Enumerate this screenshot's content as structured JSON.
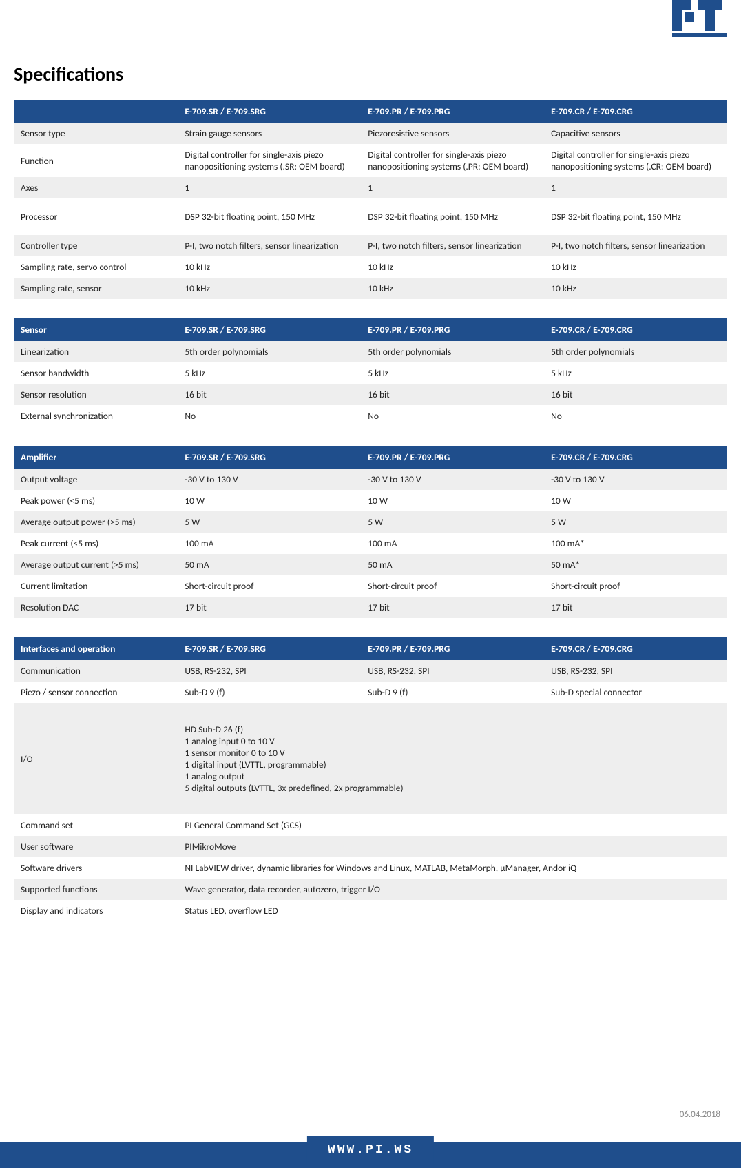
{
  "logo_text": "PI",
  "title": "Specifications",
  "date": "06.04.2018",
  "footer_url": "WWW.PI.WS",
  "header_colors": {
    "bg": "#1f4e8c",
    "text": "#ffffff",
    "row_even": "#eeeeee",
    "row_odd": "#ffffff"
  },
  "tables": [
    {
      "header": {
        "label": "",
        "c1": "E-709.SR / E-709.SRG",
        "c2": "E-709.PR / E-709.PRG",
        "c3": "E-709.CR / E-709.CRG"
      },
      "rows": [
        {
          "label": "Sensor type",
          "c1": "Strain gauge sensors",
          "c2": "Piezoresistive sensors",
          "c3": "Capacitive sensors"
        },
        {
          "label": "Function",
          "c1": "Digital controller for single-axis piezo nanopositioning systems (.SR: OEM board)",
          "c2": "Digital controller for single-axis piezo nanopositioning systems (.PR: OEM board)",
          "c3": "Digital controller for single-axis piezo nanopositioning systems (.CR: OEM board)"
        },
        {
          "label": "Axes",
          "c1": "1",
          "c2": "1",
          "c3": "1"
        },
        {
          "label": "Processor",
          "c1": "DSP 32-bit floating point, 150 MHz",
          "c2": "DSP 32-bit floating point, 150 MHz",
          "c3": "DSP 32-bit floating point, 150 MHz",
          "tall": true
        },
        {
          "label": "Controller type",
          "c1": "P-I, two notch filters, sensor linearization",
          "c2": "P-I, two notch filters, sensor linearization",
          "c3": "P-I, two notch filters, sensor linearization"
        },
        {
          "label": "Sampling rate, servo control",
          "c1": "10 kHz",
          "c2": "10 kHz",
          "c3": "10 kHz"
        },
        {
          "label": "Sampling rate, sensor",
          "c1": "10 kHz",
          "c2": "10 kHz",
          "c3": "10 kHz"
        }
      ]
    },
    {
      "header": {
        "label": "Sensor",
        "c1": "E-709.SR / E-709.SRG",
        "c2": "E-709.PR / E-709.PRG",
        "c3": "E-709.CR / E-709.CRG"
      },
      "rows": [
        {
          "label": "Linearization",
          "c1": "5th order polynomials",
          "c2": "5th order polynomials",
          "c3": "5th order polynomials"
        },
        {
          "label": "Sensor bandwidth",
          "c1": "5 kHz",
          "c2": "5 kHz",
          "c3": "5 kHz"
        },
        {
          "label": "Sensor resolution",
          "c1": "16 bit",
          "c2": "16 bit",
          "c3": "16 bit"
        },
        {
          "label": "External synchronization",
          "c1": "No",
          "c2": "No",
          "c3": "No"
        }
      ]
    },
    {
      "header": {
        "label": "Amplifier",
        "c1": "E-709.SR / E-709.SRG",
        "c2": "E-709.PR / E-709.PRG",
        "c3": "E-709.CR / E-709.CRG"
      },
      "rows": [
        {
          "label": "Output voltage",
          "c1": "-30 V to 130 V",
          "c2": "-30 V to 130 V",
          "c3": "-30 V to 130 V"
        },
        {
          "label": "Peak power (<5 ms)",
          "c1": "10 W",
          "c2": "10 W",
          "c3": "10 W"
        },
        {
          "label": "Average output power (>5 ms)",
          "c1": "5 W",
          "c2": "5 W",
          "c3": "5 W"
        },
        {
          "label": "Peak current (<5 ms)",
          "c1": "100 mA",
          "c2": "100 mA",
          "c3": "100 mA*"
        },
        {
          "label": "Average output current (>5 ms)",
          "c1": "50 mA",
          "c2": "50 mA",
          "c3": "50 mA*"
        },
        {
          "label": "Current limitation",
          "c1": "Short-circuit proof",
          "c2": "Short-circuit proof",
          "c3": "Short-circuit proof"
        },
        {
          "label": "Resolution DAC",
          "c1": "17 bit",
          "c2": "17 bit",
          "c3": "17 bit"
        }
      ]
    },
    {
      "header": {
        "label": "Interfaces and operation",
        "c1": "E-709.SR / E-709.SRG",
        "c2": "E-709.PR / E-709.PRG",
        "c3": "E-709.CR / E-709.CRG"
      },
      "rows": [
        {
          "label": "Communication",
          "c1": "USB, RS-232, SPI",
          "c2": "USB, RS-232, SPI",
          "c3": "USB, RS-232, SPI"
        },
        {
          "label": "Piezo / sensor connection",
          "c1": "Sub-D 9 (f)",
          "c2": "Sub-D 9 (f)",
          "c3": "Sub-D special connector"
        },
        {
          "label": "I/O",
          "span": true,
          "value": "HD Sub-D 26 (f)\n1 analog input 0 to 10 V\n1 sensor monitor 0 to 10 V\n1 digital input (LVTTL, programmable)\n1 analog output\n5 digital outputs (LVTTL, 3x predefined, 2x programmable)"
        },
        {
          "label": "Command set",
          "span": true,
          "value": "PI General Command Set (GCS)"
        },
        {
          "label": "User software",
          "span": true,
          "value": "PIMikroMove"
        },
        {
          "label": "Software drivers",
          "span": true,
          "value": "NI LabVIEW driver, dynamic libraries for Windows and Linux, MATLAB, MetaMorph, μManager, Andor iQ"
        },
        {
          "label": "Supported functions",
          "span": true,
          "value": "Wave generator, data recorder, autozero, trigger I/O"
        },
        {
          "label": "Display and indicators",
          "span": true,
          "value": "Status LED, overflow LED"
        }
      ]
    }
  ]
}
